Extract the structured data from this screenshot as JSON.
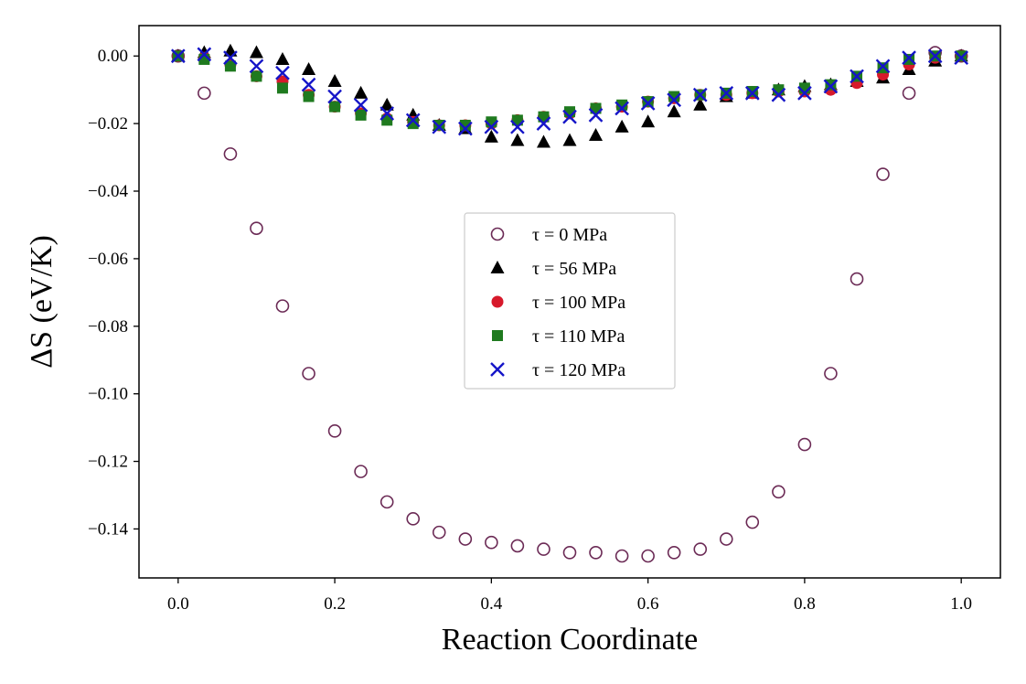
{
  "chart_data": {
    "type": "scatter",
    "title": "",
    "xlabel": "Reaction Coordinate",
    "ylabel": "ΔS (eV/K)",
    "xlim": [
      -0.05,
      1.05
    ],
    "ylim": [
      -0.1545,
      0.009
    ],
    "x_ticks": [
      0.0,
      0.2,
      0.4,
      0.6,
      0.8,
      1.0
    ],
    "x_tick_labels": [
      "0.0",
      "0.2",
      "0.4",
      "0.6",
      "0.8",
      "1.0"
    ],
    "y_ticks": [
      0.0,
      -0.02,
      -0.04,
      -0.06,
      -0.08,
      -0.1,
      -0.12,
      -0.14
    ],
    "y_tick_labels": [
      "0.00",
      "−0.02",
      "−0.04",
      "−0.06",
      "−0.08",
      "−0.10",
      "−0.12",
      "−0.14"
    ],
    "grid": false,
    "legend_position": "center",
    "x": [
      0.0,
      0.0333,
      0.0667,
      0.1,
      0.1333,
      0.1667,
      0.2,
      0.2333,
      0.2667,
      0.3,
      0.3333,
      0.3667,
      0.4,
      0.4333,
      0.4667,
      0.5,
      0.5333,
      0.5667,
      0.6,
      0.6333,
      0.6667,
      0.7,
      0.7333,
      0.7667,
      0.8,
      0.8333,
      0.8667,
      0.9,
      0.9333,
      0.9667,
      1.0
    ],
    "series": [
      {
        "name": "τ = 0 MPa",
        "marker": "circle-open",
        "color": "#6b2a55",
        "values": [
          0.0,
          -0.011,
          -0.029,
          -0.051,
          -0.074,
          -0.094,
          -0.111,
          -0.123,
          -0.132,
          -0.137,
          -0.141,
          -0.143,
          -0.144,
          -0.145,
          -0.146,
          -0.147,
          -0.147,
          -0.148,
          -0.148,
          -0.147,
          -0.146,
          -0.143,
          -0.138,
          -0.129,
          -0.115,
          -0.094,
          -0.066,
          -0.035,
          -0.011,
          0.001,
          0.0
        ]
      },
      {
        "name": "τ = 56 MPa",
        "marker": "triangle",
        "color": "#000000",
        "values": [
          0.0,
          0.001,
          0.0015,
          0.001,
          -0.001,
          -0.004,
          -0.0075,
          -0.011,
          -0.0145,
          -0.0175,
          -0.0205,
          -0.0215,
          -0.024,
          -0.025,
          -0.0255,
          -0.025,
          -0.0235,
          -0.021,
          -0.0195,
          -0.0165,
          -0.0145,
          -0.012,
          -0.011,
          -0.01,
          -0.009,
          -0.0085,
          -0.0075,
          -0.0065,
          -0.004,
          -0.0015,
          0.0
        ]
      },
      {
        "name": "τ = 100 MPa",
        "marker": "circle",
        "color": "#d7192b",
        "values": [
          0.0,
          -0.0005,
          -0.0025,
          -0.006,
          -0.0075,
          -0.0115,
          -0.015,
          -0.017,
          -0.0185,
          -0.0195,
          -0.0205,
          -0.0205,
          -0.02,
          -0.019,
          -0.018,
          -0.017,
          -0.0155,
          -0.015,
          -0.0135,
          -0.0125,
          -0.0115,
          -0.0115,
          -0.011,
          -0.0105,
          -0.0105,
          -0.01,
          -0.008,
          -0.0055,
          -0.0025,
          -0.0005,
          0.0
        ]
      },
      {
        "name": "τ = 110 MPa",
        "marker": "square",
        "color": "#1f7a1f",
        "values": [
          0.0,
          -0.001,
          -0.003,
          -0.006,
          -0.0095,
          -0.012,
          -0.015,
          -0.0175,
          -0.019,
          -0.02,
          -0.0205,
          -0.0205,
          -0.0195,
          -0.019,
          -0.018,
          -0.0165,
          -0.0155,
          -0.0145,
          -0.0135,
          -0.012,
          -0.0115,
          -0.011,
          -0.0105,
          -0.01,
          -0.0095,
          -0.0085,
          -0.006,
          -0.0035,
          -0.001,
          0.0,
          0.0
        ]
      },
      {
        "name": "τ = 120 MPa",
        "marker": "x",
        "color": "#1515c8",
        "values": [
          0.0,
          0.0005,
          -0.0005,
          -0.003,
          -0.005,
          -0.0085,
          -0.012,
          -0.0145,
          -0.017,
          -0.019,
          -0.021,
          -0.0215,
          -0.021,
          -0.021,
          -0.02,
          -0.018,
          -0.0175,
          -0.0155,
          -0.014,
          -0.013,
          -0.0115,
          -0.011,
          -0.011,
          -0.0115,
          -0.011,
          -0.009,
          -0.006,
          -0.003,
          -0.0005,
          0.0,
          -0.0005
        ]
      }
    ]
  }
}
